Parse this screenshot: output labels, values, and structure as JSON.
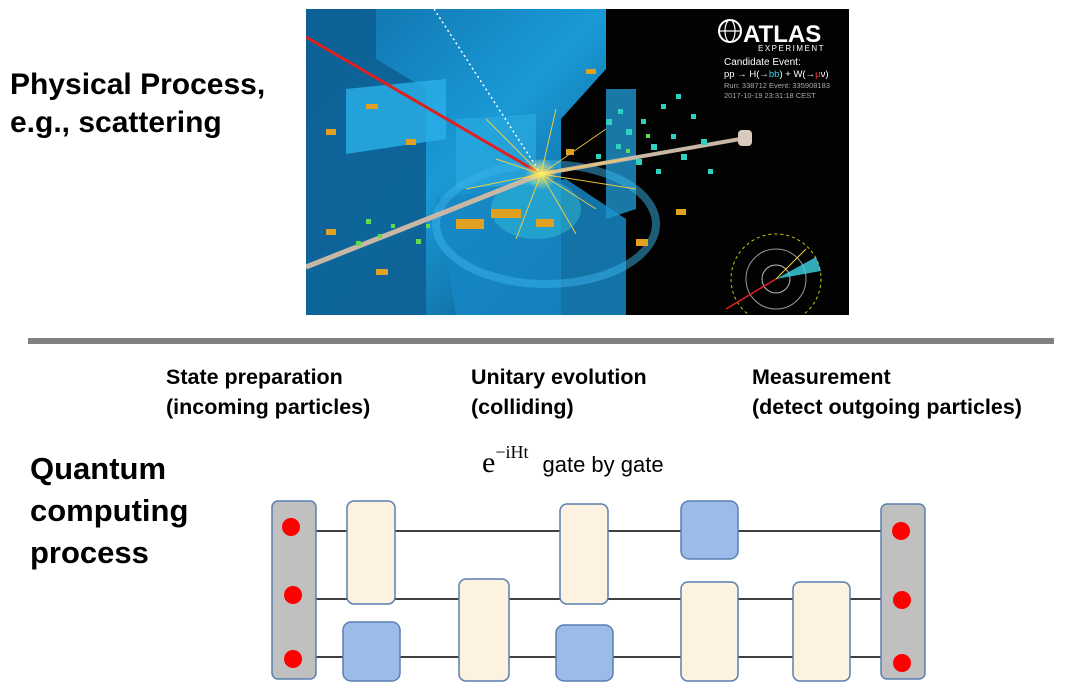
{
  "physical": {
    "line1": "Physical Process,",
    "line2": "e.g., scattering"
  },
  "event_display": {
    "logo": "ATLAS",
    "logo_sub": "EXPERIMENT",
    "candidate": "Candidate Event:",
    "process_prefix": "pp → H(→",
    "process_bb": "bb",
    "process_mid": ") + W(→",
    "process_mu": "μ",
    "process_end": "ν)",
    "run": "Run: 338712 Event: 335908183",
    "date": "2017-10-19 23:31:18 CEST",
    "colors": {
      "background": "#020202",
      "detector": "#1a9ad6",
      "beam": "#c9b7a6",
      "track_red": "#e02020",
      "hits": "#2fd0c0"
    }
  },
  "stages": [
    {
      "line1": "State preparation",
      "line2": "(incoming particles)"
    },
    {
      "line1": "Unitary evolution",
      "line2": "(colliding)"
    },
    {
      "line1": "Measurement",
      "line2": "(detect outgoing particles)"
    }
  ],
  "quantum": {
    "line1": "Quantum",
    "line2": "computing",
    "line3": "process"
  },
  "formula": {
    "base": "e",
    "exponent": "−iHt",
    "text": "gate by gate"
  },
  "circuit": {
    "qubits": 3,
    "colors": {
      "register": "#c0c0c0",
      "qubit_dot": "#ff0000",
      "gate_light": "#fdf2e0",
      "gate_blue": "#9dbbe8",
      "gate_border": "#5a7fb0"
    }
  }
}
